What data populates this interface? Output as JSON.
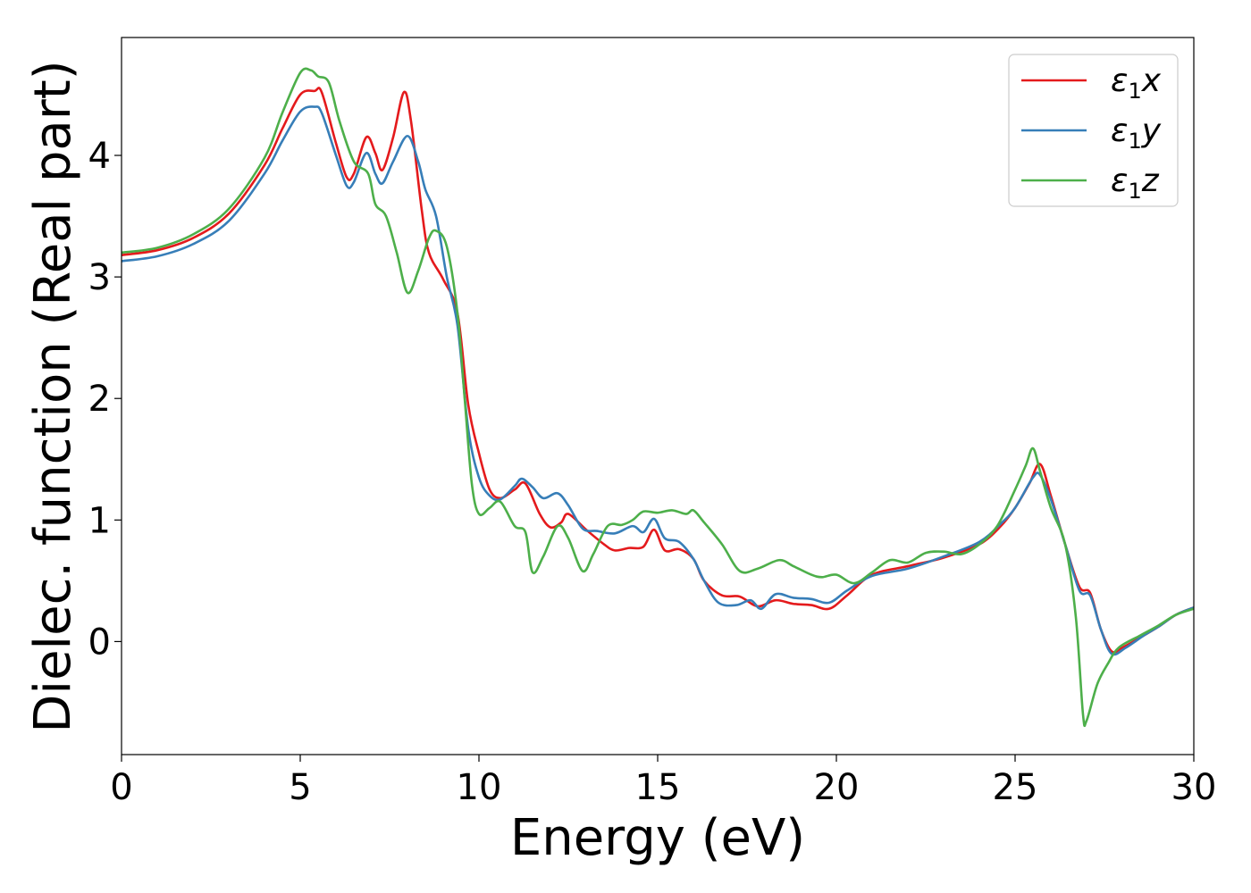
{
  "chart_data": {
    "type": "line",
    "title": "",
    "xlabel": "Energy (eV)",
    "ylabel": "Dielec. function (Real part)",
    "xlim": [
      0,
      30
    ],
    "ylim": [
      -0.93,
      4.97
    ],
    "xticks": [
      0,
      5,
      10,
      15,
      20,
      25,
      30
    ],
    "yticks": [
      0,
      1,
      2,
      3,
      4
    ],
    "grid": false,
    "legend_position": "top-right",
    "series": [
      {
        "name": "x",
        "legend": {
          "symbol": "ε",
          "sub": "1",
          "axis": "x"
        },
        "color": "#e41a1c",
        "points": [
          [
            0,
            3.18
          ],
          [
            1,
            3.22
          ],
          [
            2,
            3.32
          ],
          [
            3,
            3.52
          ],
          [
            4,
            3.92
          ],
          [
            4.5,
            4.22
          ],
          [
            5,
            4.5
          ],
          [
            5.4,
            4.53
          ],
          [
            5.6,
            4.52
          ],
          [
            6,
            4.1
          ],
          [
            6.3,
            3.82
          ],
          [
            6.5,
            3.85
          ],
          [
            6.85,
            4.15
          ],
          [
            7.1,
            4.02
          ],
          [
            7.3,
            3.88
          ],
          [
            7.6,
            4.15
          ],
          [
            7.9,
            4.52
          ],
          [
            8.1,
            4.28
          ],
          [
            8.4,
            3.55
          ],
          [
            8.6,
            3.2
          ],
          [
            9.0,
            2.98
          ],
          [
            9.4,
            2.7
          ],
          [
            9.7,
            1.95
          ],
          [
            10.0,
            1.55
          ],
          [
            10.3,
            1.25
          ],
          [
            10.6,
            1.18
          ],
          [
            11.0,
            1.25
          ],
          [
            11.3,
            1.3
          ],
          [
            11.7,
            1.05
          ],
          [
            12.0,
            0.94
          ],
          [
            12.3,
            0.98
          ],
          [
            12.5,
            1.05
          ],
          [
            13.0,
            0.92
          ],
          [
            13.5,
            0.8
          ],
          [
            13.8,
            0.75
          ],
          [
            14.2,
            0.77
          ],
          [
            14.6,
            0.78
          ],
          [
            14.9,
            0.92
          ],
          [
            15.2,
            0.75
          ],
          [
            15.6,
            0.76
          ],
          [
            16.0,
            0.68
          ],
          [
            16.3,
            0.5
          ],
          [
            16.8,
            0.38
          ],
          [
            17.3,
            0.37
          ],
          [
            17.8,
            0.29
          ],
          [
            18.3,
            0.34
          ],
          [
            18.8,
            0.31
          ],
          [
            19.3,
            0.3
          ],
          [
            19.8,
            0.27
          ],
          [
            20.3,
            0.38
          ],
          [
            21.0,
            0.55
          ],
          [
            22.0,
            0.62
          ],
          [
            23.0,
            0.69
          ],
          [
            24.0,
            0.8
          ],
          [
            24.6,
            0.95
          ],
          [
            25.0,
            1.1
          ],
          [
            25.4,
            1.3
          ],
          [
            25.7,
            1.46
          ],
          [
            26.0,
            1.2
          ],
          [
            26.4,
            0.8
          ],
          [
            26.8,
            0.45
          ],
          [
            27.1,
            0.4
          ],
          [
            27.4,
            0.1
          ],
          [
            27.7,
            -0.08
          ],
          [
            28.0,
            -0.05
          ],
          [
            28.6,
            0.05
          ],
          [
            29.0,
            0.12
          ],
          [
            29.5,
            0.22
          ],
          [
            30,
            0.28
          ]
        ]
      },
      {
        "name": "y",
        "legend": {
          "symbol": "ε",
          "sub": "1",
          "axis": "y"
        },
        "color": "#377eb8",
        "points": [
          [
            0,
            3.13
          ],
          [
            1,
            3.17
          ],
          [
            2,
            3.27
          ],
          [
            3,
            3.46
          ],
          [
            4,
            3.85
          ],
          [
            4.5,
            4.12
          ],
          [
            5,
            4.36
          ],
          [
            5.4,
            4.4
          ],
          [
            5.6,
            4.35
          ],
          [
            6,
            4.0
          ],
          [
            6.3,
            3.75
          ],
          [
            6.5,
            3.78
          ],
          [
            6.85,
            4.02
          ],
          [
            7.1,
            3.85
          ],
          [
            7.3,
            3.77
          ],
          [
            7.6,
            3.95
          ],
          [
            8.0,
            4.16
          ],
          [
            8.3,
            3.95
          ],
          [
            8.5,
            3.72
          ],
          [
            8.8,
            3.5
          ],
          [
            9.1,
            3.0
          ],
          [
            9.4,
            2.6
          ],
          [
            9.7,
            1.75
          ],
          [
            10.0,
            1.35
          ],
          [
            10.3,
            1.2
          ],
          [
            10.6,
            1.17
          ],
          [
            11.0,
            1.28
          ],
          [
            11.2,
            1.34
          ],
          [
            11.5,
            1.27
          ],
          [
            11.8,
            1.18
          ],
          [
            12.2,
            1.22
          ],
          [
            12.5,
            1.12
          ],
          [
            12.9,
            0.93
          ],
          [
            13.3,
            0.91
          ],
          [
            13.8,
            0.89
          ],
          [
            14.3,
            0.95
          ],
          [
            14.6,
            0.9
          ],
          [
            14.9,
            1.01
          ],
          [
            15.2,
            0.85
          ],
          [
            15.6,
            0.82
          ],
          [
            16.0,
            0.68
          ],
          [
            16.3,
            0.5
          ],
          [
            16.7,
            0.32
          ],
          [
            17.2,
            0.3
          ],
          [
            17.6,
            0.34
          ],
          [
            17.9,
            0.27
          ],
          [
            18.3,
            0.39
          ],
          [
            18.8,
            0.36
          ],
          [
            19.3,
            0.35
          ],
          [
            19.8,
            0.32
          ],
          [
            20.3,
            0.42
          ],
          [
            21.0,
            0.54
          ],
          [
            22.0,
            0.6
          ],
          [
            23.0,
            0.7
          ],
          [
            24.0,
            0.82
          ],
          [
            24.6,
            0.97
          ],
          [
            25.0,
            1.1
          ],
          [
            25.5,
            1.35
          ],
          [
            25.7,
            1.37
          ],
          [
            26.0,
            1.17
          ],
          [
            26.4,
            0.8
          ],
          [
            26.8,
            0.42
          ],
          [
            27.1,
            0.38
          ],
          [
            27.4,
            0.1
          ],
          [
            27.7,
            -0.1
          ],
          [
            28.1,
            -0.05
          ],
          [
            28.6,
            0.05
          ],
          [
            29.0,
            0.12
          ],
          [
            29.5,
            0.22
          ],
          [
            30,
            0.28
          ]
        ]
      },
      {
        "name": "z",
        "legend": {
          "symbol": "ε",
          "sub": "1",
          "axis": "z"
        },
        "color": "#4daf4a",
        "points": [
          [
            0,
            3.2
          ],
          [
            1,
            3.24
          ],
          [
            2,
            3.35
          ],
          [
            3,
            3.56
          ],
          [
            4,
            3.98
          ],
          [
            4.5,
            4.35
          ],
          [
            5,
            4.68
          ],
          [
            5.3,
            4.7
          ],
          [
            5.5,
            4.65
          ],
          [
            5.8,
            4.6
          ],
          [
            6.1,
            4.28
          ],
          [
            6.5,
            3.95
          ],
          [
            6.9,
            3.85
          ],
          [
            7.1,
            3.6
          ],
          [
            7.4,
            3.5
          ],
          [
            7.7,
            3.2
          ],
          [
            8.0,
            2.87
          ],
          [
            8.3,
            3.05
          ],
          [
            8.6,
            3.32
          ],
          [
            8.8,
            3.38
          ],
          [
            9.1,
            3.25
          ],
          [
            9.4,
            2.7
          ],
          [
            9.6,
            2.0
          ],
          [
            9.8,
            1.3
          ],
          [
            10.0,
            1.05
          ],
          [
            10.3,
            1.1
          ],
          [
            10.6,
            1.15
          ],
          [
            11.0,
            0.95
          ],
          [
            11.3,
            0.9
          ],
          [
            11.5,
            0.57
          ],
          [
            11.8,
            0.7
          ],
          [
            12.2,
            0.95
          ],
          [
            12.5,
            0.85
          ],
          [
            12.9,
            0.58
          ],
          [
            13.2,
            0.72
          ],
          [
            13.6,
            0.95
          ],
          [
            14.0,
            0.96
          ],
          [
            14.3,
            1.0
          ],
          [
            14.6,
            1.07
          ],
          [
            15.0,
            1.06
          ],
          [
            15.4,
            1.08
          ],
          [
            15.8,
            1.05
          ],
          [
            16.0,
            1.08
          ],
          [
            16.3,
            0.98
          ],
          [
            16.8,
            0.8
          ],
          [
            17.3,
            0.58
          ],
          [
            17.8,
            0.6
          ],
          [
            18.4,
            0.67
          ],
          [
            18.8,
            0.62
          ],
          [
            19.3,
            0.55
          ],
          [
            19.6,
            0.53
          ],
          [
            20.0,
            0.55
          ],
          [
            20.5,
            0.48
          ],
          [
            21.0,
            0.57
          ],
          [
            21.5,
            0.67
          ],
          [
            22.0,
            0.65
          ],
          [
            22.5,
            0.73
          ],
          [
            23.0,
            0.74
          ],
          [
            23.5,
            0.72
          ],
          [
            24.0,
            0.8
          ],
          [
            24.5,
            0.95
          ],
          [
            25.0,
            1.25
          ],
          [
            25.3,
            1.45
          ],
          [
            25.5,
            1.59
          ],
          [
            25.7,
            1.4
          ],
          [
            26.0,
            1.1
          ],
          [
            26.4,
            0.8
          ],
          [
            26.7,
            0.2
          ],
          [
            26.9,
            -0.6
          ],
          [
            27.0,
            -0.65
          ],
          [
            27.3,
            -0.35
          ],
          [
            27.6,
            -0.18
          ],
          [
            27.9,
            -0.05
          ],
          [
            28.5,
            0.05
          ],
          [
            29.0,
            0.13
          ],
          [
            29.5,
            0.22
          ],
          [
            30,
            0.27
          ]
        ]
      }
    ]
  }
}
